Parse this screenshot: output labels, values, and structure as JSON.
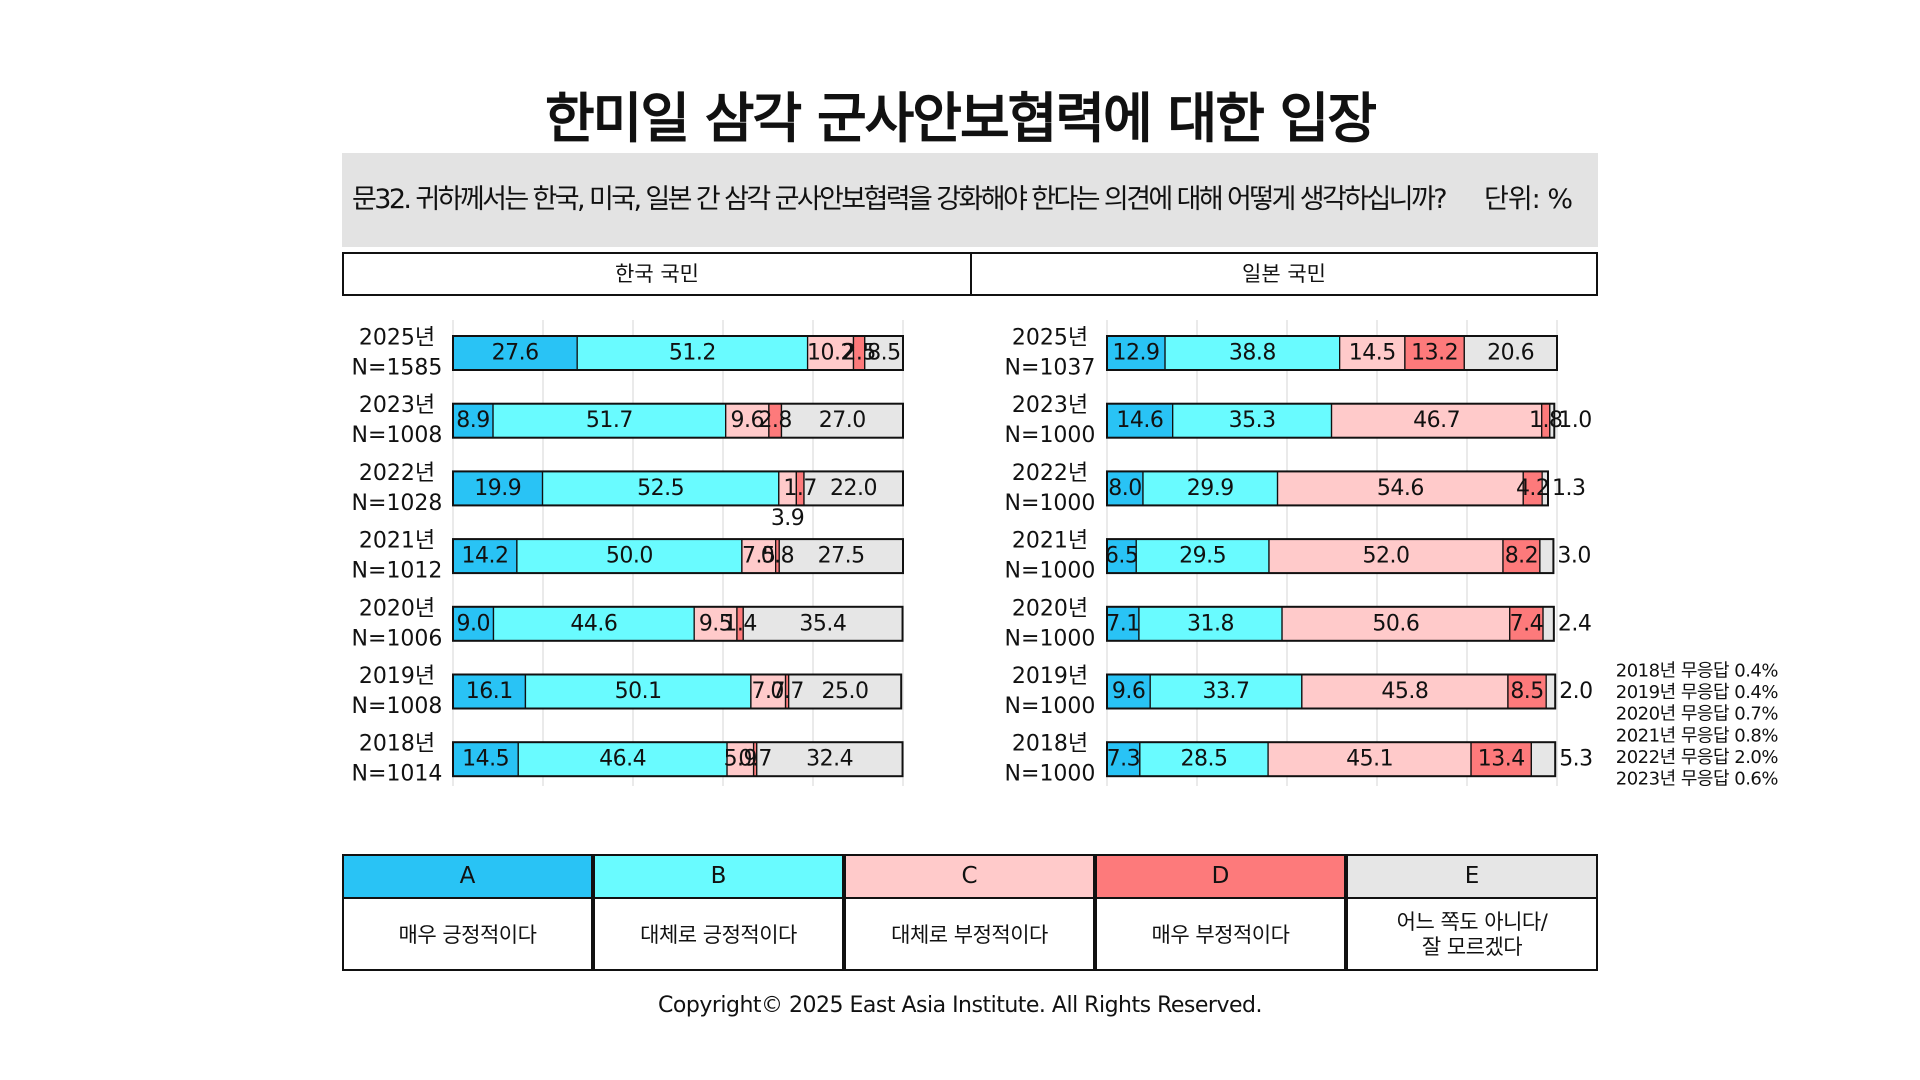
{
  "title": "한미일 삼각 군사안보협력에 대한 입장",
  "question": "문32. 귀하께서는 한국, 미국, 일본 간 삼각 군사안보협력을 강화해야 한다는 의견에 대해 어떻게 생각하십니까?",
  "unit_label": "단위: %",
  "copyright": "Copyright© 2025 East Asia Institute. All Rights Reserved.",
  "legend": [
    {
      "code": "A",
      "label": "매우 긍정적이다",
      "color": "#29c3f5"
    },
    {
      "code": "B",
      "label": "대체로 긍정적이다",
      "color": "#69fbff"
    },
    {
      "code": "C",
      "label": "대체로 부정적이다",
      "color": "#ffcaca"
    },
    {
      "code": "D",
      "label": "매우 부정적이다",
      "color": "#fd7a7b"
    },
    {
      "code": "E",
      "label": "어느 쪽도 아니다/\n잘 모르겠다",
      "color": "#e6e6e6"
    }
  ],
  "chart_data": [
    {
      "type": "bar",
      "stacked": true,
      "orientation": "horizontal",
      "title": "한국 국민",
      "categories": [
        "2025년 N=1585",
        "2023년 N=1008",
        "2022년 N=1028",
        "2021년 N=1012",
        "2020년 N=1006",
        "2019년 N=1008",
        "2018년 N=1014"
      ],
      "year_labels": [
        "2025년",
        "2023년",
        "2022년",
        "2021년",
        "2020년",
        "2019년",
        "2018년"
      ],
      "n_labels": [
        "N=1585",
        "N=1008",
        "N=1028",
        "N=1012",
        "N=1006",
        "N=1008",
        "N=1014"
      ],
      "series": [
        {
          "name": "A",
          "values": [
            27.6,
            8.9,
            19.9,
            14.2,
            9.0,
            16.1,
            14.5
          ]
        },
        {
          "name": "B",
          "values": [
            51.2,
            51.7,
            52.5,
            50.0,
            44.6,
            50.1,
            46.4
          ]
        },
        {
          "name": "C",
          "values": [
            10.2,
            9.6,
            3.9,
            7.5,
            9.5,
            7.7,
            5.9
          ]
        },
        {
          "name": "D",
          "values": [
            2.5,
            2.8,
            1.7,
            0.8,
            1.4,
            0.7,
            0.7
          ]
        },
        {
          "name": "E",
          "values": [
            8.5,
            27.0,
            22.0,
            27.5,
            35.4,
            25.0,
            32.4
          ]
        }
      ],
      "value_labels": [
        [
          "27.6",
          "51.2",
          "10.2",
          "2.5",
          "8.5"
        ],
        [
          "8.9",
          "51.7",
          "9.6",
          "2.8",
          "27.0"
        ],
        [
          "19.9",
          "52.5",
          "3.9",
          "1.7",
          "22.0"
        ],
        [
          "14.2",
          "50.0",
          "7.5",
          "0.8",
          "27.5"
        ],
        [
          "9.0",
          "44.6",
          "9.5",
          "1.4",
          "35.4"
        ],
        [
          "16.1",
          "50.1",
          "7.7",
          "0.7",
          "25.0"
        ],
        [
          "14.5",
          "46.4",
          "5.9",
          "0.7",
          "32.4"
        ]
      ],
      "xlim": [
        0,
        100
      ],
      "xticks": [
        "0",
        "20",
        "40",
        "60",
        "80",
        "100"
      ],
      "grid": true,
      "note": "2019년 무응답 0.4%"
    },
    {
      "type": "bar",
      "stacked": true,
      "orientation": "horizontal",
      "title": "일본 국민",
      "categories": [
        "2025년 N=1037",
        "2023년 N=1000",
        "2022년 N=1000",
        "2021년 N=1000",
        "2020년 N=1000",
        "2019년 N=1000",
        "2018년 N=1000"
      ],
      "year_labels": [
        "2025년",
        "2023년",
        "2022년",
        "2021년",
        "2020년",
        "2019년",
        "2018년"
      ],
      "n_labels": [
        "N=1037",
        "N=1000",
        "N=1000",
        "N=1000",
        "N=1000",
        "N=1000",
        "N=1000"
      ],
      "series": [
        {
          "name": "A",
          "values": [
            12.9,
            14.6,
            8.0,
            6.5,
            7.1,
            9.6,
            7.3
          ]
        },
        {
          "name": "B",
          "values": [
            38.8,
            35.3,
            29.9,
            29.5,
            31.8,
            33.7,
            28.5
          ]
        },
        {
          "name": "C",
          "values": [
            14.5,
            46.7,
            54.6,
            52.0,
            50.6,
            45.8,
            45.1
          ]
        },
        {
          "name": "D",
          "values": [
            13.2,
            1.8,
            4.2,
            8.2,
            7.4,
            8.5,
            13.4
          ]
        },
        {
          "name": "E",
          "values": [
            20.6,
            1.0,
            1.3,
            3.0,
            2.4,
            2.0,
            5.3
          ]
        }
      ],
      "value_labels": [
        [
          "12.9",
          "38.8",
          "14.5",
          "13.2",
          "20.6"
        ],
        [
          "14.6",
          "35.3",
          "46.7",
          "1.8",
          "1.0"
        ],
        [
          "8.0",
          "29.9",
          "54.6",
          "4.2",
          "1.3"
        ],
        [
          "6.5",
          "29.5",
          "52.0",
          "8.2",
          "3.0"
        ],
        [
          "7.1",
          "31.8",
          "50.6",
          "7.4",
          "2.4"
        ],
        [
          "9.6",
          "33.7",
          "45.8",
          "8.5",
          "2.0"
        ],
        [
          "7.3",
          "28.5",
          "45.1",
          "13.4",
          "5.3"
        ]
      ],
      "xlim": [
        0,
        100
      ],
      "xticks": [
        "0",
        "20",
        "40",
        "60",
        "80",
        "100"
      ],
      "grid": true,
      "notes": [
        "2018년 무응답 0.4%",
        "2019년 무응답 0.4%",
        "2020년 무응답 0.7%",
        "2021년 무응답 0.8%",
        "2022년 무응답 2.0%",
        "2023년 무응답 0.6%"
      ]
    }
  ]
}
